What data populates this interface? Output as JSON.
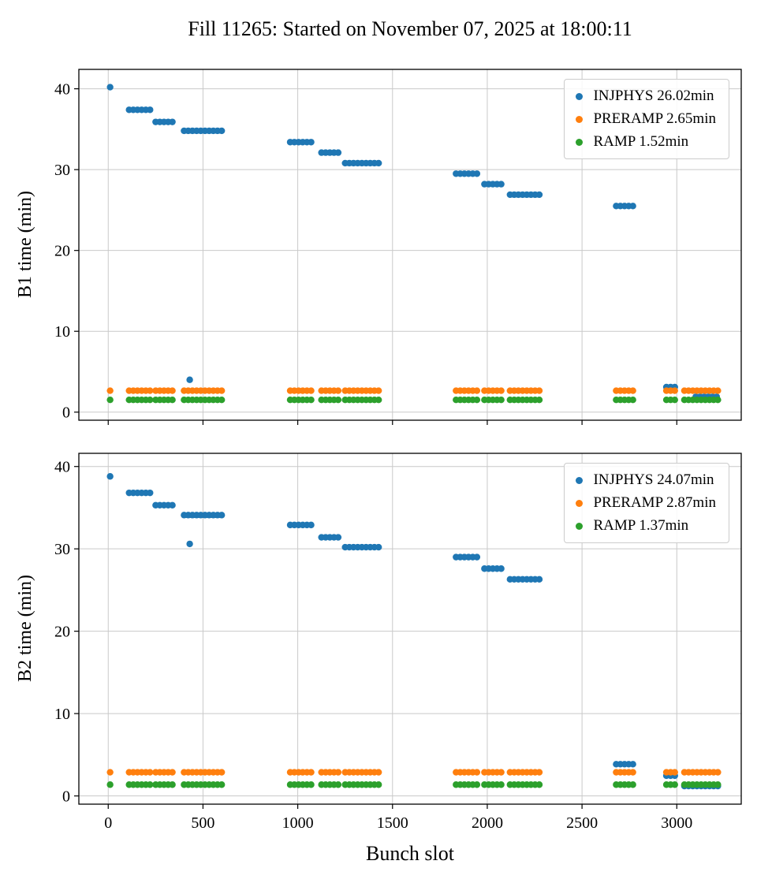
{
  "title": "Fill 11265: Started on November 07, 2025 at 18:00:11",
  "xlabel": "Bunch slot",
  "palette": {
    "blue": "#1f77b4",
    "orange": "#ff7f0e",
    "green": "#2ca02c"
  },
  "chart_data": [
    {
      "type": "scatter",
      "beam": "B1",
      "ylabel": "B1 time (min)",
      "xlim": [
        -155,
        3340
      ],
      "ylim": [
        -1,
        42.4
      ],
      "xticks": [
        0,
        500,
        1000,
        1500,
        2000,
        2500,
        3000
      ],
      "yticks": [
        0,
        10,
        20,
        30,
        40
      ],
      "grid": true,
      "legend_location": "upper right",
      "legend": [
        {
          "label": "INJPHYS 26.02min",
          "color": "#1f77b4"
        },
        {
          "label": "PRERAMP 2.65min",
          "color": "#ff7f0e"
        },
        {
          "label": "RAMP 1.52min",
          "color": "#2ca02c"
        }
      ],
      "series": [
        {
          "name": "INJPHYS",
          "color": "#1f77b4",
          "segments": [
            [
              10,
              10,
              40.2
            ],
            [
              110,
              225,
              37.4
            ],
            [
              250,
              340,
              35.9
            ],
            [
              400,
              615,
              34.8
            ],
            [
              430,
              430,
              4.0
            ],
            [
              960,
              1090,
              33.4
            ],
            [
              1125,
              1215,
              32.1
            ],
            [
              1250,
              1430,
              30.8
            ],
            [
              1835,
              1955,
              29.5
            ],
            [
              1985,
              2080,
              28.2
            ],
            [
              2120,
              2295,
              26.9
            ],
            [
              2680,
              2785,
              25.5
            ],
            [
              2945,
              3010,
              3.1
            ],
            [
              3100,
              3230,
              1.9
            ]
          ]
        },
        {
          "name": "PRERAMP",
          "color": "#ff7f0e",
          "segments": [
            [
              10,
              10,
              2.65
            ],
            [
              110,
              225,
              2.65
            ],
            [
              250,
              340,
              2.65
            ],
            [
              400,
              620,
              2.65
            ],
            [
              960,
              1090,
              2.65
            ],
            [
              1125,
              1215,
              2.65
            ],
            [
              1250,
              1430,
              2.65
            ],
            [
              1835,
              1955,
              2.65
            ],
            [
              1985,
              2080,
              2.65
            ],
            [
              2120,
              2295,
              2.65
            ],
            [
              2680,
              2785,
              2.65
            ],
            [
              2945,
              3010,
              2.65
            ],
            [
              3040,
              3230,
              2.65
            ]
          ]
        },
        {
          "name": "RAMP",
          "color": "#2ca02c",
          "segments": [
            [
              10,
              10,
              1.52
            ],
            [
              110,
              225,
              1.52
            ],
            [
              250,
              340,
              1.52
            ],
            [
              400,
              620,
              1.52
            ],
            [
              960,
              1090,
              1.52
            ],
            [
              1125,
              1215,
              1.52
            ],
            [
              1250,
              1430,
              1.52
            ],
            [
              1835,
              1955,
              1.52
            ],
            [
              1985,
              2080,
              1.52
            ],
            [
              2120,
              2295,
              1.52
            ],
            [
              2680,
              2785,
              1.52
            ],
            [
              2945,
              3010,
              1.52
            ],
            [
              3040,
              3230,
              1.52
            ]
          ]
        }
      ]
    },
    {
      "type": "scatter",
      "beam": "B2",
      "ylabel": "B2 time (min)",
      "xlim": [
        -155,
        3340
      ],
      "ylim": [
        -1,
        41.6
      ],
      "xticks": [
        0,
        500,
        1000,
        1500,
        2000,
        2500,
        3000
      ],
      "yticks": [
        0,
        10,
        20,
        30,
        40
      ],
      "grid": true,
      "legend_location": "upper right",
      "legend": [
        {
          "label": "INJPHYS 24.07min",
          "color": "#1f77b4"
        },
        {
          "label": "PRERAMP 2.87min",
          "color": "#ff7f0e"
        },
        {
          "label": "RAMP 1.37min",
          "color": "#2ca02c"
        }
      ],
      "series": [
        {
          "name": "INJPHYS",
          "color": "#1f77b4",
          "segments": [
            [
              10,
              10,
              38.8
            ],
            [
              110,
              225,
              36.8
            ],
            [
              250,
              340,
              35.3
            ],
            [
              400,
              615,
              34.1
            ],
            [
              430,
              430,
              30.6
            ],
            [
              960,
              1090,
              32.9
            ],
            [
              1125,
              1215,
              31.4
            ],
            [
              1250,
              1430,
              30.2
            ],
            [
              1835,
              1955,
              29.0
            ],
            [
              1985,
              2080,
              27.6
            ],
            [
              2120,
              2295,
              26.3
            ],
            [
              2680,
              2785,
              3.85
            ],
            [
              2945,
              3010,
              2.45
            ],
            [
              3040,
              3230,
              1.2
            ]
          ]
        },
        {
          "name": "PRERAMP",
          "color": "#ff7f0e",
          "segments": [
            [
              10,
              10,
              2.87
            ],
            [
              110,
              225,
              2.87
            ],
            [
              250,
              340,
              2.87
            ],
            [
              400,
              620,
              2.87
            ],
            [
              960,
              1090,
              2.87
            ],
            [
              1125,
              1215,
              2.87
            ],
            [
              1250,
              1430,
              2.87
            ],
            [
              1835,
              1955,
              2.87
            ],
            [
              1985,
              2080,
              2.87
            ],
            [
              2120,
              2295,
              2.87
            ],
            [
              2680,
              2785,
              2.87
            ],
            [
              2945,
              3010,
              2.87
            ],
            [
              3040,
              3230,
              2.87
            ]
          ]
        },
        {
          "name": "RAMP",
          "color": "#2ca02c",
          "segments": [
            [
              10,
              10,
              1.37
            ],
            [
              110,
              225,
              1.37
            ],
            [
              250,
              340,
              1.37
            ],
            [
              400,
              620,
              1.37
            ],
            [
              960,
              1090,
              1.37
            ],
            [
              1125,
              1215,
              1.37
            ],
            [
              1250,
              1430,
              1.37
            ],
            [
              1835,
              1955,
              1.37
            ],
            [
              1985,
              2080,
              1.37
            ],
            [
              2120,
              2295,
              1.37
            ],
            [
              2680,
              2785,
              1.37
            ],
            [
              2945,
              3010,
              1.37
            ],
            [
              3040,
              3230,
              1.37
            ]
          ]
        }
      ]
    }
  ]
}
